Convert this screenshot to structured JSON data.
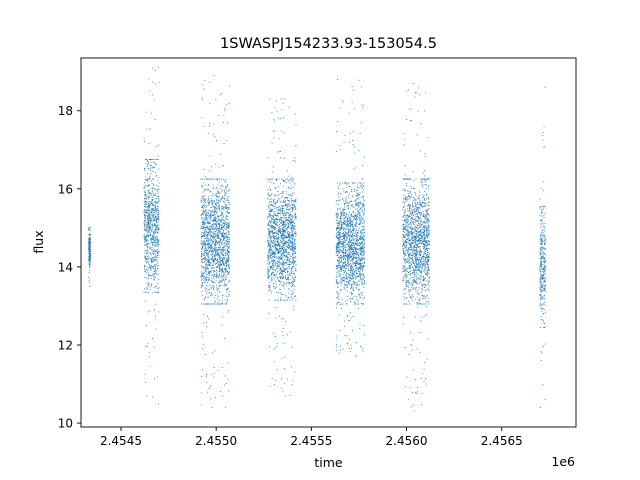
{
  "chart_data": {
    "type": "scatter",
    "title": "1SWASPJ154233.93-153054.5",
    "xlabel": "time",
    "ylabel": "flux",
    "x_offset_label": "1e6",
    "xlim": [
      2454290,
      2456890
    ],
    "ylim": [
      9.9,
      19.35
    ],
    "x_ticks": [
      2454500,
      2455000,
      2455500,
      2456000,
      2456500
    ],
    "x_tick_labels": [
      "2.4545",
      "2.4550",
      "2.4555",
      "2.4560",
      "2.4565"
    ],
    "y_ticks": [
      10,
      12,
      14,
      16,
      18
    ],
    "y_tick_labels": [
      "10",
      "12",
      "14",
      "16",
      "18"
    ],
    "grid": false,
    "marker_color": "#1f77b4",
    "seasons": [
      {
        "x_start": 2454330,
        "x_end": 2454340,
        "core_low": 13.9,
        "core_high": 14.9,
        "low": 13.5,
        "high": 15.0
      },
      {
        "x_start": 2454620,
        "x_end": 2454700,
        "core_low": 13.6,
        "core_high": 16.5,
        "low": 10.5,
        "high": 19.1
      },
      {
        "x_start": 2454920,
        "x_end": 2455070,
        "core_low": 13.3,
        "core_high": 16.0,
        "low": 10.4,
        "high": 18.9
      },
      {
        "x_start": 2455270,
        "x_end": 2455420,
        "core_low": 13.4,
        "core_high": 16.0,
        "low": 10.7,
        "high": 18.3
      },
      {
        "x_start": 2455630,
        "x_end": 2455780,
        "core_low": 13.3,
        "core_high": 15.9,
        "low": 11.7,
        "high": 18.8
      },
      {
        "x_start": 2455980,
        "x_end": 2456120,
        "core_low": 13.3,
        "core_high": 16.0,
        "low": 10.3,
        "high": 18.7
      },
      {
        "x_start": 2456700,
        "x_end": 2456730,
        "core_low": 12.7,
        "core_high": 15.3,
        "low": 10.4,
        "high": 18.6
      }
    ]
  }
}
